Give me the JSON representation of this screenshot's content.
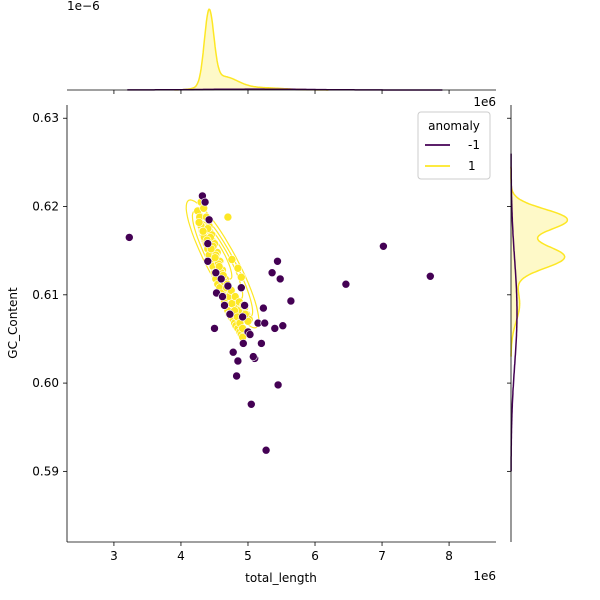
{
  "chart_data": {
    "type": "scatter",
    "title": "",
    "xlabel": "total_length",
    "ylabel": "GC_Content",
    "x_offset_label": "1e6",
    "y_offset_label_topright": "1e6",
    "top_marginal_offset_label": "1e−6",
    "xlim": [
      2.3,
      8.7
    ],
    "ylim": [
      0.582,
      0.6315
    ],
    "x_ticks": [
      "3",
      "4",
      "5",
      "6",
      "7",
      "8"
    ],
    "y_ticks": [
      "0.59",
      "0.60",
      "0.61",
      "0.62",
      "0.63"
    ],
    "legend": {
      "title": "anomaly",
      "placement": "upper right",
      "entries": [
        {
          "label": "-1",
          "color": "#440154"
        },
        {
          "label": "1",
          "color": "#fde725"
        }
      ]
    },
    "series": [
      {
        "name": "-1",
        "color": "#440154",
        "x": [
          3.23,
          4.32,
          4.36,
          4.42,
          4.4,
          4.52,
          4.6,
          4.5,
          4.7,
          4.65,
          4.78,
          4.85,
          4.9,
          4.92,
          4.95,
          5.0,
          5.03,
          5.1,
          5.15,
          5.2,
          5.23,
          5.25,
          5.36,
          5.4,
          5.44,
          5.45,
          5.52,
          5.64,
          4.83,
          4.73,
          4.93,
          5.05,
          5.27,
          6.46,
          7.02,
          7.72,
          5.48,
          4.4,
          4.53,
          5.08,
          4.62
        ],
        "y": [
          0.6165,
          0.6212,
          0.6205,
          0.6185,
          0.6158,
          0.6125,
          0.6118,
          0.6062,
          0.611,
          0.6088,
          0.6035,
          0.6025,
          0.6108,
          0.6075,
          0.6088,
          0.6058,
          0.6055,
          0.6028,
          0.6068,
          0.6045,
          0.6085,
          0.6068,
          0.6125,
          0.6062,
          0.6138,
          0.5998,
          0.6065,
          0.6093,
          0.6008,
          0.6078,
          0.6045,
          0.5976,
          0.5924,
          0.6112,
          0.6155,
          0.6121,
          0.6118,
          0.6138,
          0.6102,
          0.603,
          0.6098
        ]
      },
      {
        "name": "1",
        "color": "#fde725",
        "x": [
          4.25,
          4.28,
          4.3,
          4.32,
          4.35,
          4.38,
          4.4,
          4.42,
          4.45,
          4.48,
          4.5,
          4.52,
          4.55,
          4.58,
          4.6,
          4.62,
          4.65,
          4.68,
          4.7,
          4.72,
          4.75,
          4.78,
          4.8,
          4.82,
          4.85,
          4.88,
          4.9,
          4.92,
          4.95,
          4.98,
          5.02,
          4.3,
          4.34,
          4.38,
          4.42,
          4.46,
          4.5,
          4.54,
          4.58,
          4.62,
          4.66,
          4.7,
          4.74,
          4.78,
          4.82,
          4.86,
          4.4,
          4.44,
          4.48,
          4.52,
          4.56,
          4.6,
          4.64,
          4.68,
          4.72,
          4.76,
          4.8,
          4.84,
          4.88,
          4.92,
          4.96,
          5.0,
          4.27,
          4.33,
          4.39,
          4.45,
          4.51,
          4.57,
          4.63,
          4.69,
          4.75,
          4.81,
          4.87,
          4.93,
          4.7,
          4.76,
          4.85,
          4.9
        ],
        "y": [
          0.6195,
          0.6188,
          0.6178,
          0.6172,
          0.6165,
          0.6158,
          0.6152,
          0.6145,
          0.6138,
          0.6132,
          0.6125,
          0.6118,
          0.6112,
          0.6108,
          0.6102,
          0.6098,
          0.6092,
          0.6088,
          0.6082,
          0.6078,
          0.6075,
          0.6072,
          0.6068,
          0.6065,
          0.6062,
          0.6058,
          0.6055,
          0.6052,
          0.6085,
          0.6078,
          0.6072,
          0.6205,
          0.6198,
          0.6188,
          0.6178,
          0.6168,
          0.6158,
          0.6148,
          0.6138,
          0.6128,
          0.6118,
          0.611,
          0.6102,
          0.6095,
          0.6088,
          0.6082,
          0.6175,
          0.6165,
          0.6155,
          0.6145,
          0.6135,
          0.6125,
          0.6115,
          0.6108,
          0.6098,
          0.609,
          0.6082,
          0.6075,
          0.6068,
          0.6062,
          0.6078,
          0.607,
          0.6182,
          0.6172,
          0.6162,
          0.6152,
          0.6142,
          0.6132,
          0.6122,
          0.6112,
          0.6105,
          0.6098,
          0.6092,
          0.6088,
          0.6188,
          0.614,
          0.613,
          0.612
        ]
      }
    ],
    "top_marginal": {
      "type": "kde",
      "x_peak": 4.42,
      "series": [
        "-1",
        "1"
      ]
    },
    "right_marginal": {
      "type": "kde",
      "y_peaks": [
        0.6185,
        0.6143
      ],
      "series": [
        "-1",
        "1"
      ]
    }
  }
}
